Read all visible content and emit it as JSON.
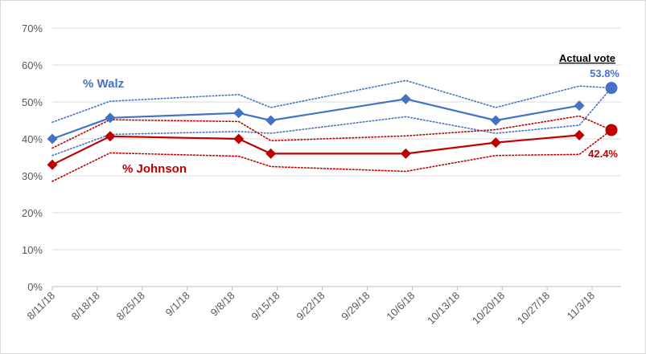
{
  "chart_data": {
    "type": "line",
    "x": [
      "8/11/18",
      "8/18/18",
      "8/25/18",
      "9/1/18",
      "9/8/18",
      "9/15/18",
      "9/22/18",
      "9/29/18",
      "10/6/18",
      "10/13/18",
      "10/20/18",
      "10/27/18",
      "11/3/18"
    ],
    "ylim": [
      0,
      70
    ],
    "yticks": [
      "0%",
      "10%",
      "20%",
      "30%",
      "40%",
      "50%",
      "60%",
      "70%"
    ],
    "grid": true,
    "series": [
      {
        "name": "% Walz",
        "color": "#4472C4",
        "style": "solid",
        "marker": "diamond",
        "points": [
          {
            "x": "8/11/18",
            "y": 40.0
          },
          {
            "x": "8/20/18",
            "y": 45.7
          },
          {
            "x": "9/9/18",
            "y": 47.0
          },
          {
            "x": "9/14/18",
            "y": 45.0
          },
          {
            "x": "10/5/18",
            "y": 50.8
          },
          {
            "x": "10/19/18",
            "y": 45.0
          },
          {
            "x": "11/1/18",
            "y": 49.0
          }
        ]
      },
      {
        "name": "% Johnson",
        "color": "#C00000",
        "style": "solid",
        "marker": "diamond",
        "points": [
          {
            "x": "8/11/18",
            "y": 33.0
          },
          {
            "x": "8/20/18",
            "y": 40.7
          },
          {
            "x": "9/9/18",
            "y": 40.0
          },
          {
            "x": "9/14/18",
            "y": 36.0
          },
          {
            "x": "10/5/18",
            "y": 36.0
          },
          {
            "x": "10/19/18",
            "y": 39.0
          },
          {
            "x": "11/1/18",
            "y": 41.0
          }
        ]
      },
      {
        "color": "#4472C4",
        "style": "dotted",
        "points": [
          {
            "x": "8/11/18",
            "y": 44.5
          },
          {
            "x": "8/20/18",
            "y": 50.2
          },
          {
            "x": "9/9/18",
            "y": 52.0
          },
          {
            "x": "9/14/18",
            "y": 48.5
          },
          {
            "x": "10/5/18",
            "y": 55.8
          },
          {
            "x": "10/19/18",
            "y": 48.5
          },
          {
            "x": "11/1/18",
            "y": 54.3
          },
          {
            "x": "11/6/18",
            "y": 53.8
          }
        ]
      },
      {
        "color": "#4472C4",
        "style": "dotted",
        "points": [
          {
            "x": "8/11/18",
            "y": 35.5
          },
          {
            "x": "8/20/18",
            "y": 41.2
          },
          {
            "x": "9/9/18",
            "y": 42.0
          },
          {
            "x": "9/14/18",
            "y": 41.5
          },
          {
            "x": "10/5/18",
            "y": 46.0
          },
          {
            "x": "10/19/18",
            "y": 41.5
          },
          {
            "x": "11/1/18",
            "y": 43.7
          },
          {
            "x": "11/6/18",
            "y": 53.8
          }
        ]
      },
      {
        "color": "#C00000",
        "style": "dotted",
        "points": [
          {
            "x": "8/11/18",
            "y": 37.5
          },
          {
            "x": "8/20/18",
            "y": 45.2
          },
          {
            "x": "9/9/18",
            "y": 44.7
          },
          {
            "x": "9/14/18",
            "y": 39.5
          },
          {
            "x": "10/5/18",
            "y": 40.8
          },
          {
            "x": "10/19/18",
            "y": 42.5
          },
          {
            "x": "11/1/18",
            "y": 46.2
          },
          {
            "x": "11/6/18",
            "y": 42.4
          }
        ]
      },
      {
        "color": "#C00000",
        "style": "dotted",
        "points": [
          {
            "x": "8/11/18",
            "y": 28.5
          },
          {
            "x": "8/20/18",
            "y": 36.2
          },
          {
            "x": "9/9/18",
            "y": 35.3
          },
          {
            "x": "9/14/18",
            "y": 32.5
          },
          {
            "x": "10/5/18",
            "y": 31.2
          },
          {
            "x": "10/19/18",
            "y": 35.5
          },
          {
            "x": "11/1/18",
            "y": 35.8
          },
          {
            "x": "11/6/18",
            "y": 42.4
          }
        ]
      }
    ],
    "actual_vote": {
      "title": "Actual vote",
      "x": "11/6/18",
      "values": [
        {
          "label": "53.8%",
          "y": 53.8,
          "color": "#4472C4"
        },
        {
          "label": "42.4%",
          "y": 42.4,
          "color": "#C00000"
        }
      ]
    },
    "colors": {
      "grid": "#d9d9d9",
      "axis": "#bfbfbf",
      "tick_text": "#595959",
      "walz": "#4472C4",
      "johnson": "#C00000"
    }
  }
}
